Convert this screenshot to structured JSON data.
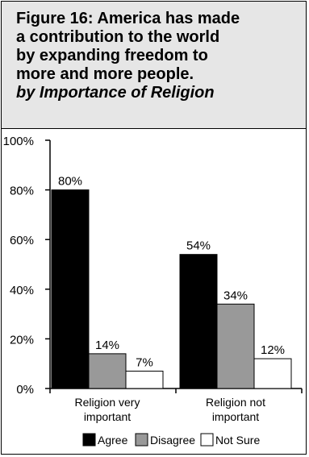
{
  "title_lines": [
    "Figure 16: America has made",
    "a contribution to the world",
    "by expanding freedom to",
    "more and more people."
  ],
  "subtitle": "by Importance of Religion",
  "colors": {
    "Agree": "#000000",
    "Disagree": "#999999",
    "Not Sure": "#ffffff",
    "title_background": "#e6e6e6"
  },
  "chart_data": {
    "type": "bar",
    "title": "Figure 16: America has made a contribution to the world by expanding freedom to more and more people.",
    "subtitle": "by Importance of Religion",
    "categories": [
      [
        "Religion very",
        "important"
      ],
      [
        "Religion not",
        "important"
      ]
    ],
    "series": [
      {
        "name": "Agree",
        "values": [
          80,
          54
        ]
      },
      {
        "name": "Disagree",
        "values": [
          14,
          34
        ]
      },
      {
        "name": "Not Sure",
        "values": [
          7,
          12
        ]
      }
    ],
    "value_labels": [
      [
        "80%",
        "54%"
      ],
      [
        "14%",
        "34%"
      ],
      [
        "7%",
        "12%"
      ]
    ],
    "ylim": [
      0,
      100
    ],
    "yticks": [
      0,
      20,
      40,
      60,
      80,
      100
    ],
    "ytick_labels": [
      "0%",
      "20%",
      "40%",
      "60%",
      "80%",
      "100%"
    ],
    "grid": false,
    "legend": {
      "position": "bottom",
      "entries": [
        "Agree",
        "Disagree",
        "Not Sure"
      ]
    }
  }
}
